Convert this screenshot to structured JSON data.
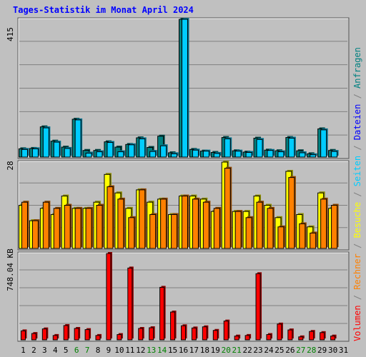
{
  "chart_data": [
    {
      "type": "bar",
      "title": "Tages-Statistik im Monat April 2024",
      "ylabel": "415",
      "categories": [
        "1",
        "2",
        "3",
        "4",
        "5",
        "6",
        "7",
        "8",
        "9",
        "10",
        "11",
        "12",
        "13",
        "14",
        "15",
        "16",
        "17",
        "18",
        "19",
        "20",
        "21",
        "22",
        "23",
        "24",
        "25",
        "26",
        "27",
        "28",
        "29",
        "30",
        "31"
      ],
      "weekend_days": [
        "6",
        "7",
        "13",
        "14",
        "20",
        "21",
        "27",
        "28"
      ],
      "ylim": [
        0,
        415
      ],
      "series": [
        {
          "name": "Anfragen",
          "color": "#008080",
          "values": [
            25,
            26,
            91,
            48,
            30,
            114,
            20,
            20,
            46,
            30,
            38,
            58,
            29,
            63,
            13,
            415,
            23,
            18,
            14,
            59,
            19,
            15,
            57,
            21,
            19,
            59,
            19,
            10,
            85,
            20,
            0
          ]
        },
        {
          "name": "Dateien",
          "color": "#00ccff",
          "values": [
            23,
            25,
            88,
            45,
            26,
            112,
            12,
            16,
            44,
            16,
            37,
            55,
            17,
            34,
            10,
            415,
            21,
            18,
            11,
            55,
            18,
            14,
            53,
            20,
            16,
            57,
            13,
            7,
            82,
            17,
            0
          ]
        }
      ]
    },
    {
      "type": "bar",
      "ylabel": "28",
      "categories": [
        "1",
        "2",
        "3",
        "4",
        "5",
        "6",
        "7",
        "8",
        "9",
        "10",
        "11",
        "12",
        "13",
        "14",
        "15",
        "16",
        "17",
        "18",
        "19",
        "20",
        "21",
        "22",
        "23",
        "24",
        "25",
        "26",
        "27",
        "28",
        "29",
        "30",
        "31"
      ],
      "ylim": [
        0,
        28
      ],
      "series": [
        {
          "name": "Seiten",
          "color": "#ffff00",
          "values": [
            14,
            9,
            13,
            11,
            17,
            13,
            13,
            15,
            24,
            18,
            13,
            19,
            15,
            16,
            11,
            17,
            17,
            16,
            12,
            28,
            12,
            12,
            17,
            14,
            10,
            25,
            11,
            7,
            18,
            13,
            0
          ]
        },
        {
          "name": "Besuche",
          "color": "#ff8000",
          "values": [
            15,
            9,
            15,
            13,
            14,
            13,
            13,
            14,
            20,
            16,
            10,
            19,
            11,
            16,
            11,
            17,
            16,
            15,
            13,
            26,
            12,
            10,
            15,
            13,
            7,
            23,
            8,
            5,
            16,
            14,
            0
          ]
        }
      ]
    },
    {
      "type": "bar",
      "ylabel": "748.04 KB",
      "categories": [
        "1",
        "2",
        "3",
        "4",
        "5",
        "6",
        "7",
        "8",
        "9",
        "10",
        "11",
        "12",
        "13",
        "14",
        "15",
        "16",
        "17",
        "18",
        "19",
        "20",
        "21",
        "22",
        "23",
        "24",
        "25",
        "26",
        "27",
        "28",
        "29",
        "30",
        "31"
      ],
      "ylim": [
        0,
        748.04
      ],
      "series": [
        {
          "name": "Volumen",
          "color": "#ff0000",
          "values": [
            78,
            55,
            95,
            38,
            124,
            99,
            89,
            38,
            748,
            46,
            622,
            99,
            105,
            455,
            241,
            122,
            103,
            113,
            82,
            163,
            33,
            38,
            573,
            46,
            137,
            86,
            26,
            73,
            63,
            33,
            0
          ]
        }
      ]
    }
  ],
  "legend": [
    {
      "label": "Volumen",
      "color": "#ff0000"
    },
    {
      "label": "/",
      "color": "#808080"
    },
    {
      "label": "Rechner",
      "color": "#ff8000"
    },
    {
      "label": "/",
      "color": "#808080"
    },
    {
      "label": "Besuche",
      "color": "#ffff00"
    },
    {
      "label": "/",
      "color": "#808080"
    },
    {
      "label": "Seiten",
      "color": "#00ccff"
    },
    {
      "label": "/",
      "color": "#808080"
    },
    {
      "label": "Dateien",
      "color": "#0000ff"
    },
    {
      "label": "/",
      "color": "#808080"
    },
    {
      "label": "Anfragen",
      "color": "#008080"
    }
  ],
  "colors": {
    "background": "#c0c0c0",
    "weekday_label": "#000000",
    "weekend_label": "#008000",
    "title": "#0000ff"
  }
}
